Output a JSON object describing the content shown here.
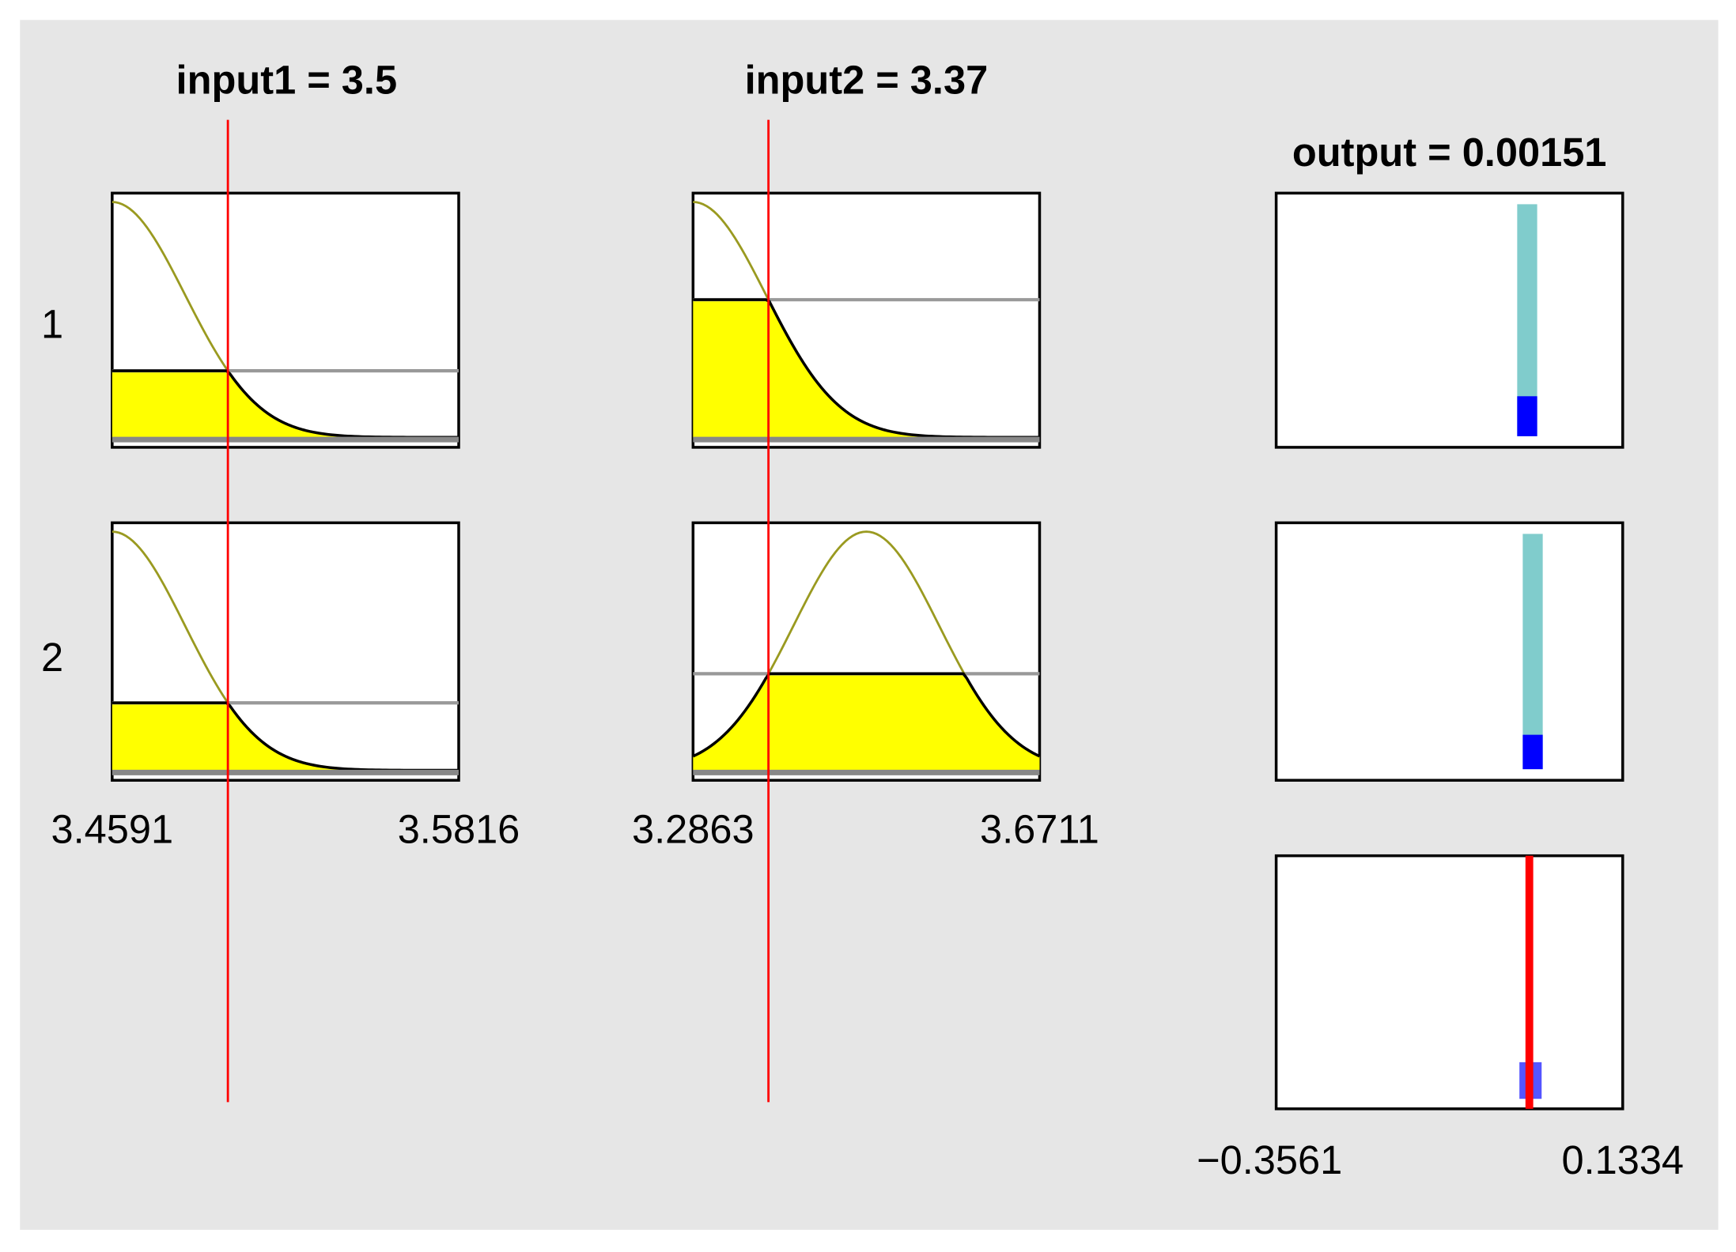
{
  "inputs": [
    {
      "title": "input1 = 3.5",
      "min_label": "3.4591",
      "max_label": "3.5816"
    },
    {
      "title": "input2 = 3.37",
      "min_label": "3.2863",
      "max_label": "3.6711"
    }
  ],
  "rules": [
    "1",
    "2"
  ],
  "output": {
    "title": "output = 0.00151",
    "min_label": "−0.3561",
    "max_label": "0.1334"
  }
}
